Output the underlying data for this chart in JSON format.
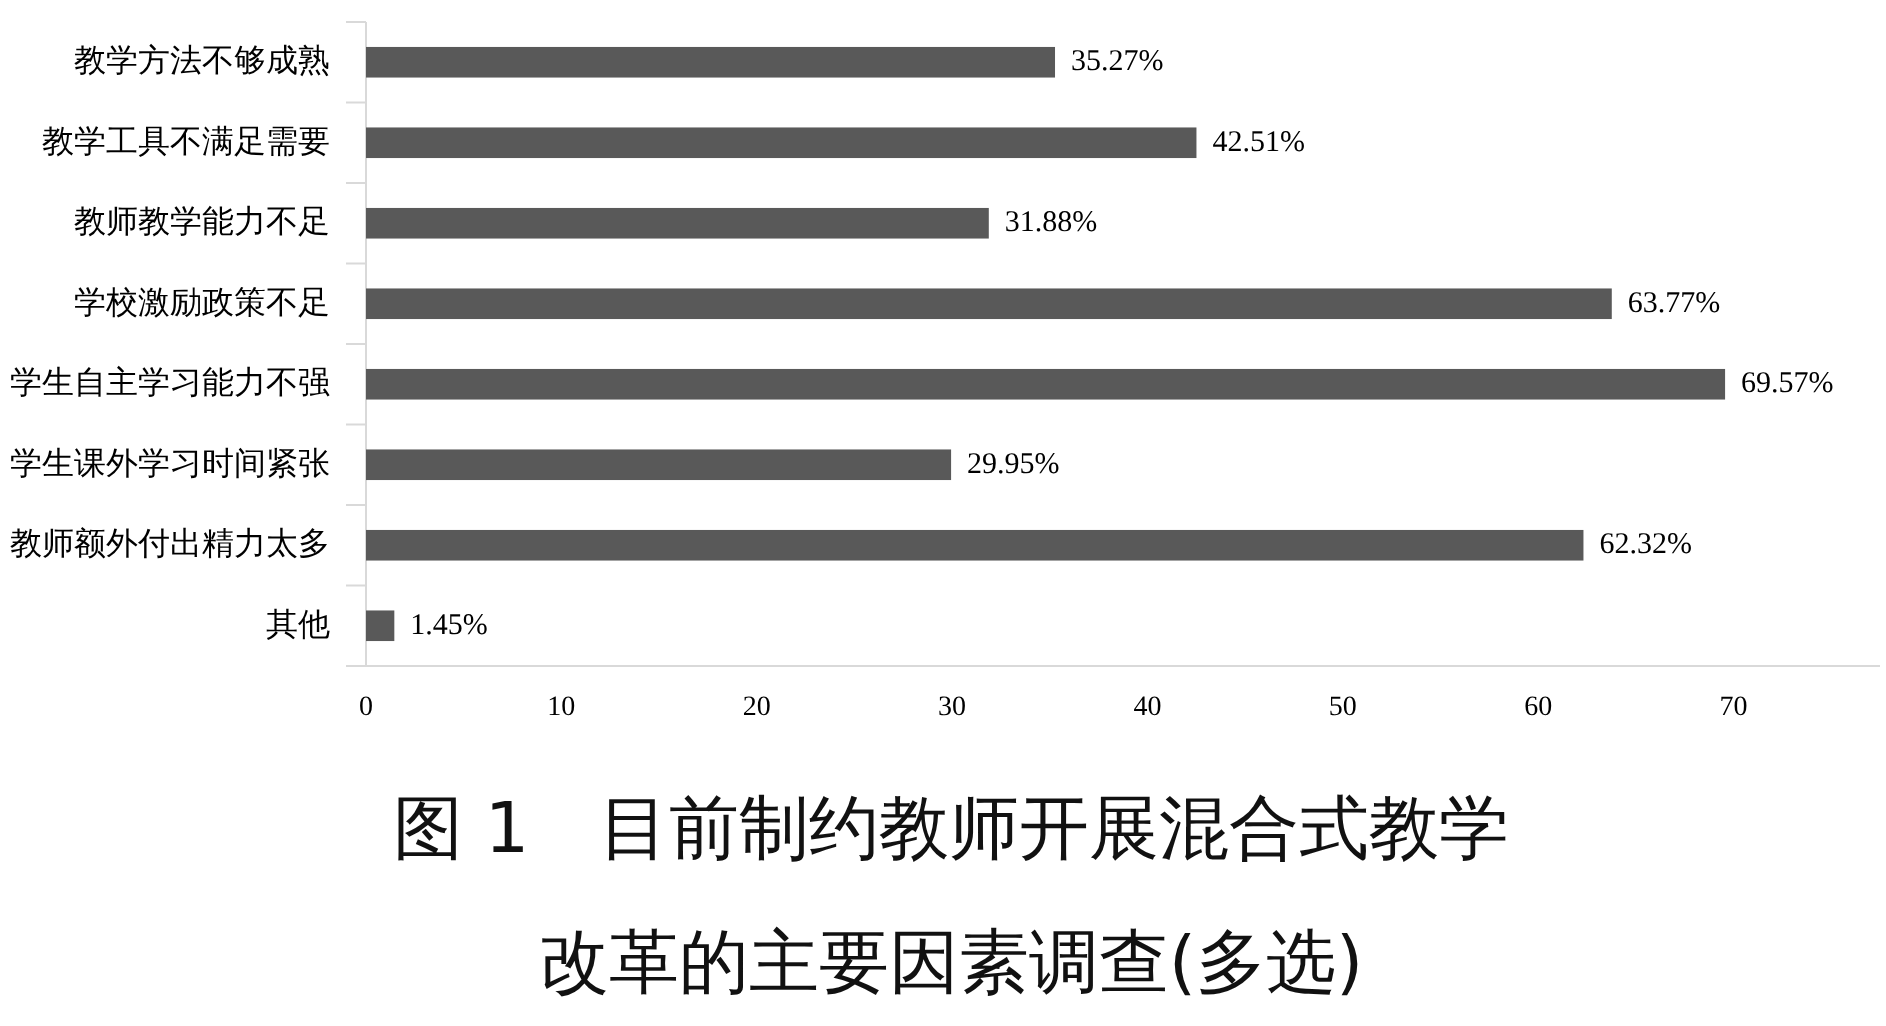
{
  "chart_data": {
    "type": "bar",
    "orientation": "horizontal",
    "title": "图 1　目前制约教师开展混合式教学改革的主要因素调查(多选)",
    "categories": [
      "教学方法不够成熟",
      "教学工具不满足需要",
      "教师教学能力不足",
      "学校激励政策不足",
      "学生自主学习能力不强",
      "学生课外学习时间紧张",
      "教师额外付出精力太多",
      "其他"
    ],
    "values": [
      35.27,
      42.51,
      31.88,
      63.77,
      69.57,
      29.95,
      62.32,
      1.45
    ],
    "value_labels": [
      "35.27%",
      "42.51%",
      "31.88%",
      "63.77%",
      "69.57%",
      "29.95%",
      "62.32%",
      "1.45%"
    ],
    "color": "#595959",
    "xlim": [
      0,
      77.5
    ],
    "xticks": [
      0,
      10,
      20,
      30,
      40,
      50,
      60,
      70
    ]
  }
}
